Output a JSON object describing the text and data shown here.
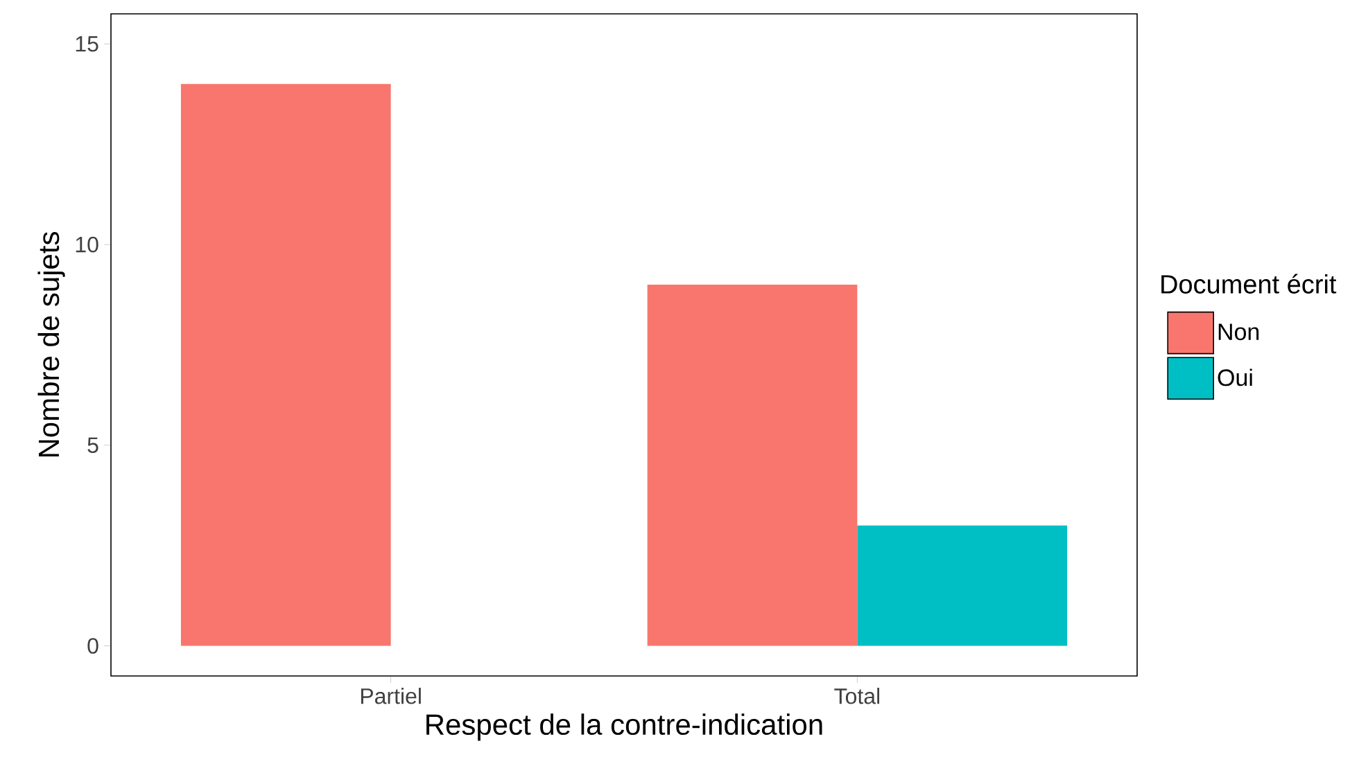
{
  "chart_data": {
    "type": "bar",
    "xlabel": "Respect de la contre-indication",
    "ylabel": "Nombre de sujets",
    "legend_title": "Document écrit",
    "categories": [
      "Partiel",
      "Total"
    ],
    "series": [
      {
        "name": "Non",
        "color": "#f8766d",
        "values": [
          14,
          9
        ]
      },
      {
        "name": "Oui",
        "color": "#00bfc4",
        "values": [
          null,
          3
        ]
      }
    ],
    "ylim": [
      -0.75,
      15.75
    ],
    "yticks": [
      0,
      5,
      10,
      15
    ],
    "legend": "right"
  }
}
